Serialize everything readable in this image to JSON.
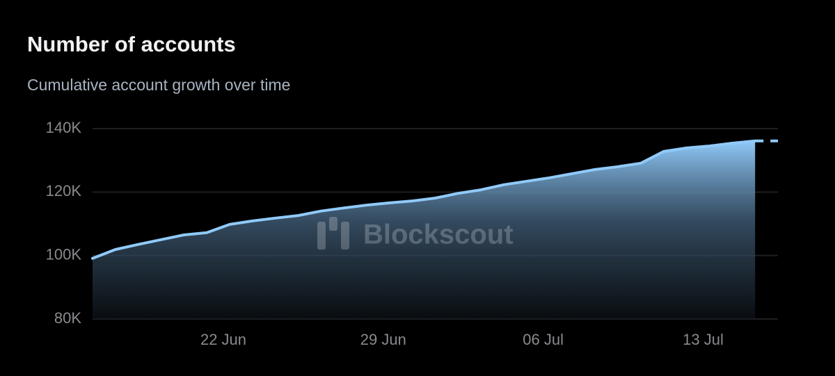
{
  "chart_data": {
    "type": "area",
    "title": "Number of accounts",
    "subtitle": "Cumulative account growth over time",
    "watermark": "Blockscout",
    "categories": [
      null,
      null,
      null,
      null,
      null,
      null,
      "22 Jun",
      null,
      null,
      null,
      null,
      null,
      null,
      "29 Jun",
      null,
      null,
      null,
      null,
      null,
      null,
      "06 Jul",
      null,
      null,
      null,
      null,
      null,
      null,
      "13 Jul",
      null,
      null,
      null
    ],
    "series": [
      {
        "name": "Number of accounts",
        "color": "#90caf9",
        "values": [
          99100,
          101900,
          103500,
          105000,
          106500,
          107200,
          109800,
          110900,
          111800,
          112600,
          114000,
          115000,
          115900,
          116600,
          117200,
          118100,
          119600,
          120700,
          122300,
          123400,
          124500,
          125800,
          127100,
          128000,
          129100,
          132800,
          133900,
          134500,
          135400,
          136100,
          136100
        ]
      }
    ],
    "ylim": [
      80000,
      140000
    ],
    "yticks": [
      {
        "value": 80000,
        "label": "80K"
      },
      {
        "value": 100000,
        "label": "100K"
      },
      {
        "value": 120000,
        "label": "120K"
      },
      {
        "value": 140000,
        "label": "140K"
      }
    ],
    "grid": true
  }
}
